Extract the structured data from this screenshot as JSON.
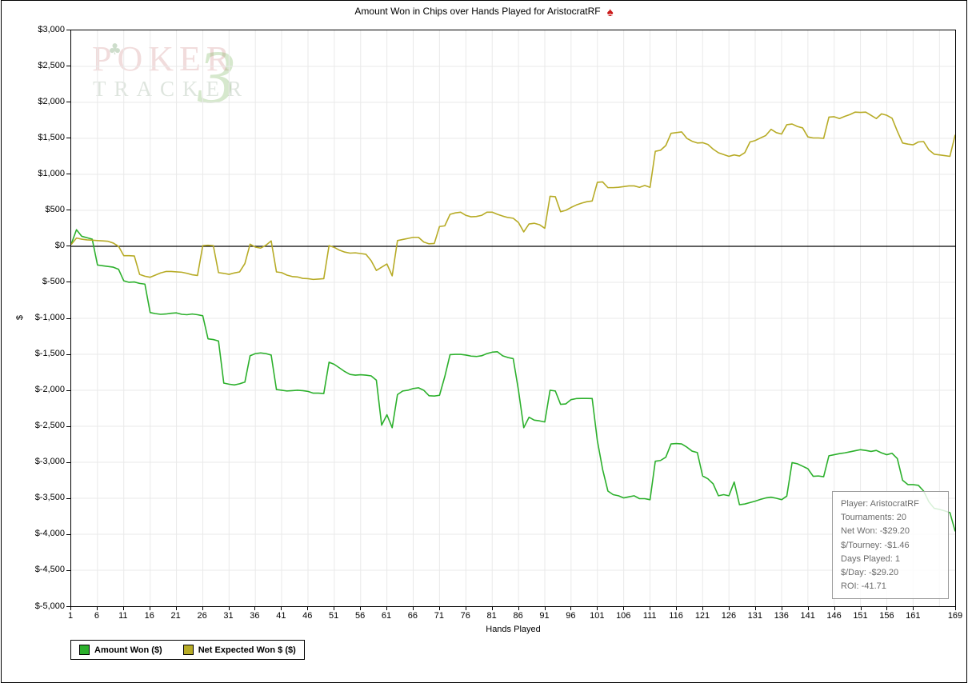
{
  "title": "Amount Won in Chips over Hands Played for AristocratRF",
  "icons": {
    "spade": "♠",
    "club": "♣"
  },
  "watermark": {
    "line1": "POKER",
    "line2": "TRACKER",
    "badge": "3"
  },
  "legend": [
    {
      "label": "Amount Won ($)",
      "color": "#2cb02c"
    },
    {
      "label": "Net Expected Won $ ($)",
      "color": "#b7ab26"
    }
  ],
  "info_box": {
    "lines": [
      "Player: AristocratRF",
      "Tournaments: 20",
      "Net Won: -$29.20",
      "$/Tourney: -$1.46",
      "Days Played: 1",
      "$/Day: -$29.20",
      "ROI: -41.71"
    ]
  },
  "chart_data": {
    "type": "line",
    "title": "Amount Won in Chips over Hands Played for AristocratRF",
    "xlabel": "Hands Played",
    "ylabel": "$",
    "xlim": [
      1,
      169
    ],
    "ylim": [
      -5000,
      3000
    ],
    "grid": true,
    "legend_position": "bottom-left",
    "colors": {
      "grid": "#e9e9e9",
      "axis": "#000000",
      "zero_line": "#000000"
    },
    "x_ticks": [
      {
        "v": 1,
        "label": "1"
      },
      {
        "v": 6,
        "label": "6"
      },
      {
        "v": 11,
        "label": "11"
      },
      {
        "v": 16,
        "label": "16"
      },
      {
        "v": 21,
        "label": "21"
      },
      {
        "v": 26,
        "label": "26"
      },
      {
        "v": 31,
        "label": "31"
      },
      {
        "v": 36,
        "label": "36"
      },
      {
        "v": 41,
        "label": "41"
      },
      {
        "v": 46,
        "label": "46"
      },
      {
        "v": 51,
        "label": "51"
      },
      {
        "v": 56,
        "label": "56"
      },
      {
        "v": 61,
        "label": "61"
      },
      {
        "v": 66,
        "label": "66"
      },
      {
        "v": 71,
        "label": "71"
      },
      {
        "v": 76,
        "label": "76"
      },
      {
        "v": 81,
        "label": "81"
      },
      {
        "v": 86,
        "label": "86"
      },
      {
        "v": 91,
        "label": "91"
      },
      {
        "v": 96,
        "label": "96"
      },
      {
        "v": 101,
        "label": "101"
      },
      {
        "v": 106,
        "label": "106"
      },
      {
        "v": 111,
        "label": "111"
      },
      {
        "v": 116,
        "label": "116"
      },
      {
        "v": 121,
        "label": "121"
      },
      {
        "v": 126,
        "label": "126"
      },
      {
        "v": 131,
        "label": "131"
      },
      {
        "v": 136,
        "label": "136"
      },
      {
        "v": 141,
        "label": "141"
      },
      {
        "v": 146,
        "label": "146"
      },
      {
        "v": 151,
        "label": "151"
      },
      {
        "v": 156,
        "label": "156"
      },
      {
        "v": 161,
        "label": "161"
      },
      {
        "v": 169,
        "label": "169"
      }
    ],
    "y_ticks": [
      {
        "v": 3000,
        "label": "$3,000"
      },
      {
        "v": 2500,
        "label": "$2,500"
      },
      {
        "v": 2000,
        "label": "$2,000"
      },
      {
        "v": 1500,
        "label": "$1,500"
      },
      {
        "v": 1000,
        "label": "$1,000"
      },
      {
        "v": 500,
        "label": "$500"
      },
      {
        "v": 0,
        "label": "$0"
      },
      {
        "v": -500,
        "label": "$-500"
      },
      {
        "v": -1000,
        "label": "$-1,000"
      },
      {
        "v": -1500,
        "label": "$-1,500"
      },
      {
        "v": -2000,
        "label": "$-2,000"
      },
      {
        "v": -2500,
        "label": "$-2,500"
      },
      {
        "v": -3000,
        "label": "$-3,000"
      },
      {
        "v": -3500,
        "label": "$-3,500"
      },
      {
        "v": -4000,
        "label": "$-4,000"
      },
      {
        "v": -4500,
        "label": "$-4,500"
      },
      {
        "v": -5000,
        "label": "$-5,000"
      }
    ],
    "x_gridline_step": 5,
    "y_gridline_step": 500,
    "series": [
      {
        "name": "Amount Won ($)",
        "color": "#2cb02c",
        "x_start": 1,
        "values": [
          30,
          230,
          140,
          120,
          100,
          -260,
          -270,
          -280,
          -290,
          -320,
          -480,
          -500,
          -495,
          -515,
          -525,
          -920,
          -935,
          -945,
          -940,
          -930,
          -925,
          -945,
          -950,
          -940,
          -950,
          -965,
          -1285,
          -1295,
          -1315,
          -1900,
          -1915,
          -1925,
          -1910,
          -1885,
          -1520,
          -1490,
          -1480,
          -1490,
          -1510,
          -1990,
          -2000,
          -2010,
          -2005,
          -2000,
          -2005,
          -2015,
          -2040,
          -2040,
          -2045,
          -1610,
          -1640,
          -1690,
          -1740,
          -1780,
          -1790,
          -1785,
          -1790,
          -1800,
          -1860,
          -2485,
          -2340,
          -2520,
          -2060,
          -2010,
          -2000,
          -1975,
          -1965,
          -2000,
          -2075,
          -2080,
          -2070,
          -1810,
          -1505,
          -1500,
          -1500,
          -1510,
          -1525,
          -1530,
          -1520,
          -1490,
          -1470,
          -1465,
          -1520,
          -1545,
          -1560,
          -2000,
          -2520,
          -2375,
          -2415,
          -2425,
          -2440,
          -2000,
          -2010,
          -2195,
          -2190,
          -2130,
          -2115,
          -2113,
          -2113,
          -2115,
          -2700,
          -3100,
          -3400,
          -3450,
          -3465,
          -3495,
          -3480,
          -3465,
          -3505,
          -3505,
          -3520,
          -2985,
          -2975,
          -2930,
          -2745,
          -2740,
          -2745,
          -2790,
          -2845,
          -2865,
          -3190,
          -3230,
          -3300,
          -3465,
          -3450,
          -3465,
          -3275,
          -3590,
          -3580,
          -3560,
          -3540,
          -3515,
          -3495,
          -3485,
          -3500,
          -3520,
          -3470,
          -3005,
          -3020,
          -3055,
          -3090,
          -3195,
          -3190,
          -3200,
          -2910,
          -2895,
          -2880,
          -2870,
          -2855,
          -2840,
          -2825,
          -2835,
          -2850,
          -2835,
          -2870,
          -2895,
          -2875,
          -2950,
          -3250,
          -3310,
          -3310,
          -3320,
          -3400,
          -3550,
          -3640,
          -3655,
          -3675,
          -3700,
          -3960
        ]
      },
      {
        "name": "Net Expected Won $ ($)",
        "color": "#b7ab26",
        "x_start": 1,
        "values": [
          25,
          115,
          100,
          90,
          85,
          80,
          75,
          70,
          45,
          0,
          -130,
          -130,
          -135,
          -390,
          -415,
          -430,
          -400,
          -370,
          -350,
          -350,
          -355,
          -360,
          -375,
          -395,
          -405,
          10,
          15,
          10,
          -365,
          -375,
          -390,
          -370,
          -355,
          -240,
          30,
          -10,
          -25,
          15,
          75,
          -355,
          -365,
          -400,
          -420,
          -425,
          -445,
          -450,
          -460,
          -455,
          -450,
          10,
          -15,
          -55,
          -80,
          -95,
          -90,
          -100,
          -110,
          -200,
          -335,
          -290,
          -245,
          -410,
          80,
          95,
          110,
          125,
          125,
          60,
          35,
          40,
          275,
          285,
          445,
          465,
          475,
          430,
          410,
          415,
          430,
          475,
          475,
          445,
          420,
          400,
          390,
          330,
          200,
          310,
          320,
          300,
          250,
          695,
          690,
          480,
          500,
          540,
          575,
          600,
          620,
          630,
          890,
          895,
          815,
          815,
          820,
          830,
          840,
          840,
          820,
          845,
          820,
          1320,
          1335,
          1400,
          1570,
          1580,
          1590,
          1500,
          1460,
          1435,
          1440,
          1415,
          1350,
          1300,
          1275,
          1250,
          1270,
          1255,
          1300,
          1450,
          1470,
          1505,
          1540,
          1625,
          1580,
          1560,
          1690,
          1700,
          1665,
          1645,
          1520,
          1505,
          1505,
          1500,
          1795,
          1800,
          1775,
          1805,
          1830,
          1865,
          1860,
          1865,
          1820,
          1775,
          1840,
          1820,
          1780,
          1600,
          1435,
          1420,
          1410,
          1450,
          1455,
          1340,
          1280,
          1270,
          1260,
          1250,
          1550
        ]
      }
    ]
  }
}
